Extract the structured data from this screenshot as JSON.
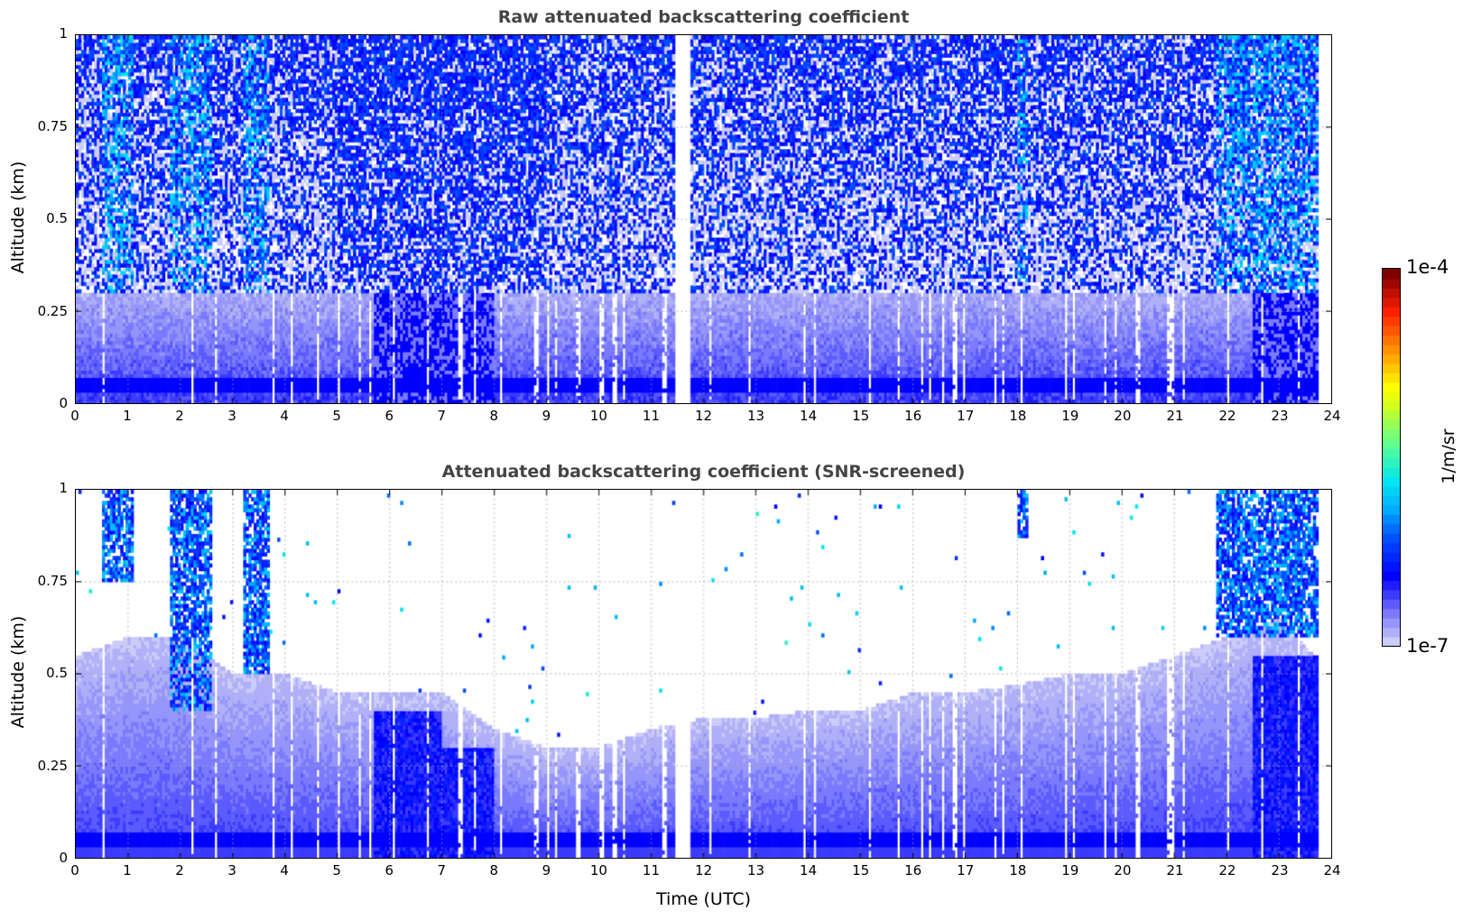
{
  "chart_data": [
    {
      "type": "heatmap",
      "title": "Raw attenuated backscattering coefficient",
      "xlabel": "",
      "ylabel": "Altitude (km)",
      "xlim": [
        0,
        24
      ],
      "ylim": [
        0,
        1
      ],
      "xticks": [
        "0",
        "1",
        "2",
        "3",
        "4",
        "5",
        "6",
        "7",
        "8",
        "9",
        "10",
        "11",
        "12",
        "13",
        "14",
        "15",
        "16",
        "17",
        "18",
        "19",
        "20",
        "21",
        "22",
        "23",
        "24"
      ],
      "yticks": [
        "0",
        "0.25",
        "0.5",
        "0.75",
        "1"
      ],
      "data_gap_hours": [
        11.45,
        11.75
      ],
      "grid": true
    },
    {
      "type": "heatmap",
      "title": "Attenuated backscattering coefficient (SNR-screened)",
      "xlabel": "Time (UTC)",
      "ylabel": "Altitude (km)",
      "xlim": [
        0,
        24
      ],
      "ylim": [
        0,
        1
      ],
      "xticks": [
        "0",
        "1",
        "2",
        "3",
        "4",
        "5",
        "6",
        "7",
        "8",
        "9",
        "10",
        "11",
        "12",
        "13",
        "14",
        "15",
        "16",
        "17",
        "18",
        "19",
        "20",
        "21",
        "22",
        "23",
        "24"
      ],
      "yticks": [
        "0",
        "0.25",
        "0.5",
        "0.75",
        "1"
      ],
      "data_gap_hours": [
        11.45,
        11.75
      ],
      "signal_top_km_hourly": [
        0.55,
        0.6,
        0.6,
        0.5,
        0.5,
        0.45,
        0.45,
        0.45,
        0.35,
        0.3,
        0.3,
        0.35,
        0.38,
        0.38,
        0.4,
        0.4,
        0.45,
        0.45,
        0.47,
        0.5,
        0.5,
        0.55,
        0.6,
        0.65,
        0.5
      ],
      "dense_aerosol_layers": [
        {
          "start": 5.7,
          "end": 7.0,
          "top_km": 0.4
        },
        {
          "start": 7.0,
          "end": 8.0,
          "top_km": 0.3
        },
        {
          "start": 22.5,
          "end": 23.8,
          "top_km": 0.55
        }
      ],
      "cloud_events": [
        {
          "start": 0.5,
          "end": 1.1,
          "base_km": 0.75
        },
        {
          "start": 1.8,
          "end": 2.6,
          "base_km": 0.4
        },
        {
          "start": 3.2,
          "end": 3.7,
          "base_km": 0.5
        },
        {
          "start": 18.0,
          "end": 18.2,
          "base_km": 0.87
        },
        {
          "start": 21.8,
          "end": 23.8,
          "base_km": 0.6
        }
      ],
      "grid": true
    }
  ],
  "colorbar": {
    "label": "1/m/sr",
    "min_label": "1e-7",
    "max_label": "1e-4",
    "min": 1e-07,
    "max": 0.0001,
    "scale": "log",
    "stops": [
      [
        0,
        "#e8e8fa"
      ],
      [
        0.05,
        "#b0b0f8"
      ],
      [
        0.1,
        "#7a7aff"
      ],
      [
        0.15,
        "#3b3bff"
      ],
      [
        0.2,
        "#0000ff"
      ],
      [
        0.3,
        "#0050ff"
      ],
      [
        0.38,
        "#00b0ff"
      ],
      [
        0.45,
        "#00e5f0"
      ],
      [
        0.55,
        "#60ff90"
      ],
      [
        0.65,
        "#d0ff20"
      ],
      [
        0.7,
        "#ffff00"
      ],
      [
        0.8,
        "#ff9000"
      ],
      [
        0.9,
        "#ff2000"
      ],
      [
        1,
        "#800000"
      ]
    ]
  }
}
